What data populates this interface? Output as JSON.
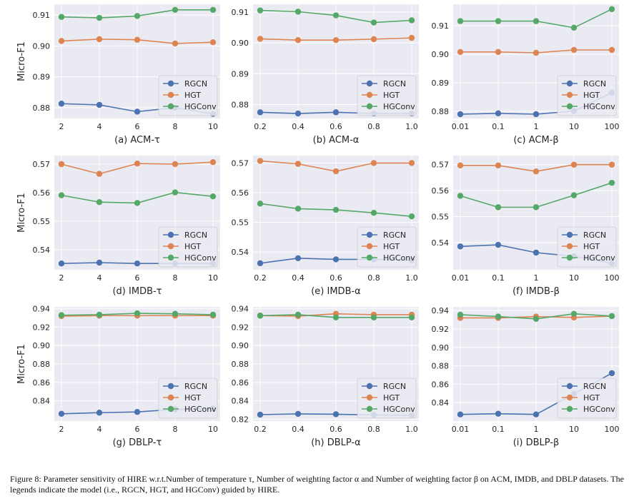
{
  "caption": "Figure 8: Parameter sensitivity of HIRE w.r.t.Number of temperature τ, Number of weighting factor α and Number of weighting factor β on ACM, IMDB, and DBLP datasets. The legends indicate the model (i.e., RGCN, HGT, and HGConv) guided by HIRE.",
  "colors": {
    "RGCN": "#4c72b0",
    "HGT": "#dd8452",
    "HGConv": "#55a868",
    "panel_bg": "#eaeaf2",
    "grid": "#ffffff"
  },
  "chart_data": [
    {
      "type": "line",
      "title": "(a) ACM-τ",
      "ylabel": "Micro-F1",
      "categories": [
        "2",
        "4",
        "6",
        "8",
        "10"
      ],
      "yticks": [
        "0.88",
        "0.89",
        "0.90",
        "0.91"
      ],
      "ylim": [
        0.8765,
        0.9135
      ],
      "series": [
        {
          "name": "RGCN",
          "values": [
            0.8813,
            0.8809,
            0.8787,
            0.88,
            0.878
          ]
        },
        {
          "name": "HGT",
          "values": [
            0.9016,
            0.9022,
            0.902,
            0.9008,
            0.9012
          ]
        },
        {
          "name": "HGConv",
          "values": [
            0.9094,
            0.9091,
            0.9097,
            0.9117,
            0.9117
          ]
        }
      ]
    },
    {
      "type": "line",
      "title": "(b) ACM-α",
      "ylabel": "",
      "categories": [
        "0.2",
        "0.4",
        "0.6",
        "0.8",
        "1.0"
      ],
      "yticks": [
        "0.88",
        "0.89",
        "0.90",
        "0.91"
      ],
      "ylim": [
        0.8755,
        0.9125
      ],
      "series": [
        {
          "name": "RGCN",
          "values": [
            0.8775,
            0.8771,
            0.8775,
            0.8771,
            0.8771
          ]
        },
        {
          "name": "HGT",
          "values": [
            0.9013,
            0.9009,
            0.9009,
            0.9012,
            0.9016
          ]
        },
        {
          "name": "HGConv",
          "values": [
            0.9105,
            0.9101,
            0.9089,
            0.9066,
            0.9073
          ]
        }
      ]
    },
    {
      "type": "line",
      "title": "(c) ACM-β",
      "ylabel": "",
      "categories": [
        "0.01",
        "0.1",
        "1",
        "10",
        "100"
      ],
      "yticks": [
        "0.88",
        "0.89",
        "0.90",
        "0.91"
      ],
      "ylim": [
        0.8775,
        0.9175
      ],
      "series": [
        {
          "name": "RGCN",
          "values": [
            0.879,
            0.8793,
            0.879,
            0.8801,
            0.8865
          ]
        },
        {
          "name": "HGT",
          "values": [
            0.9008,
            0.9008,
            0.9005,
            0.9015,
            0.9015
          ]
        },
        {
          "name": "HGConv",
          "values": [
            0.9116,
            0.9116,
            0.9116,
            0.9093,
            0.9158
          ]
        }
      ]
    },
    {
      "type": "line",
      "title": "(d) IMDB-τ",
      "ylabel": "Micro-F1",
      "categories": [
        "2",
        "4",
        "6",
        "8",
        "10"
      ],
      "yticks": [
        "0.54",
        "0.55",
        "0.56",
        "0.57"
      ],
      "ylim": [
        0.533,
        0.573
      ],
      "series": [
        {
          "name": "RGCN",
          "values": [
            0.5352,
            0.5355,
            0.5352,
            0.5352,
            0.5352
          ]
        },
        {
          "name": "HGT",
          "values": [
            0.57,
            0.5666,
            0.5702,
            0.57,
            0.5707
          ]
        },
        {
          "name": "HGConv",
          "values": [
            0.5591,
            0.5567,
            0.5564,
            0.5601,
            0.5587
          ]
        }
      ]
    },
    {
      "type": "line",
      "title": "(e) IMDB-α",
      "ylabel": "",
      "categories": [
        "0.2",
        "0.4",
        "0.6",
        "0.8",
        "1.0"
      ],
      "yticks": [
        "0.54",
        "0.55",
        "0.56",
        "0.57"
      ],
      "ylim": [
        0.534,
        0.5725
      ],
      "series": [
        {
          "name": "RGCN",
          "values": [
            0.5362,
            0.5379,
            0.5375,
            0.5375,
            0.5372
          ]
        },
        {
          "name": "HGT",
          "values": [
            0.5707,
            0.5697,
            0.5672,
            0.57,
            0.57
          ]
        },
        {
          "name": "HGConv",
          "values": [
            0.5563,
            0.5546,
            0.5542,
            0.5532,
            0.552
          ]
        }
      ]
    },
    {
      "type": "line",
      "title": "(f) IMDB-β",
      "ylabel": "",
      "categories": [
        "0.01",
        "0.1",
        "1",
        "10",
        "100"
      ],
      "yticks": [
        "0.54",
        "0.55",
        "0.56",
        "0.57"
      ],
      "ylim": [
        0.5295,
        0.5735
      ],
      "series": [
        {
          "name": "RGCN",
          "values": [
            0.5385,
            0.5391,
            0.5361,
            0.5347,
            0.532
          ]
        },
        {
          "name": "HGT",
          "values": [
            0.5697,
            0.5697,
            0.5674,
            0.57,
            0.57
          ]
        },
        {
          "name": "HGConv",
          "values": [
            0.558,
            0.5536,
            0.5536,
            0.5582,
            0.563
          ]
        }
      ]
    },
    {
      "type": "line",
      "title": "(g) DBLP-τ",
      "ylabel": "Micro-F1",
      "categories": [
        "2",
        "4",
        "6",
        "8",
        "10"
      ],
      "yticks": [
        "0.84",
        "0.86",
        "0.88",
        "0.90",
        "0.92",
        "0.94"
      ],
      "ylim": [
        0.818,
        0.942
      ],
      "series": [
        {
          "name": "RGCN",
          "values": [
            0.8259,
            0.8271,
            0.8279,
            0.8307,
            0.8315
          ]
        },
        {
          "name": "HGT",
          "values": [
            0.932,
            0.9325,
            0.9325,
            0.9325,
            0.9325
          ]
        },
        {
          "name": "HGConv",
          "values": [
            0.933,
            0.9335,
            0.935,
            0.9345,
            0.9335
          ]
        }
      ]
    },
    {
      "type": "line",
      "title": "(h) DBLP-α",
      "ylabel": "",
      "categories": [
        "0.2",
        "0.4",
        "0.6",
        "0.8",
        "1.0"
      ],
      "yticks": [
        "0.82",
        "0.84",
        "0.86",
        "0.88",
        "0.90",
        "0.92",
        "0.94"
      ],
      "ylim": [
        0.818,
        0.942
      ],
      "series": [
        {
          "name": "RGCN",
          "values": [
            0.825,
            0.8258,
            0.8254,
            0.8246,
            0.8242
          ]
        },
        {
          "name": "HGT",
          "values": [
            0.9325,
            0.932,
            0.9345,
            0.9335,
            0.9335
          ]
        },
        {
          "name": "HGConv",
          "values": [
            0.9325,
            0.9335,
            0.9305,
            0.9305,
            0.9305
          ]
        }
      ]
    },
    {
      "type": "line",
      "title": "(i) DBLP-β",
      "ylabel": "",
      "categories": [
        "0.01",
        "0.1",
        "1",
        "10",
        "100"
      ],
      "yticks": [
        "0.84",
        "0.86",
        "0.88",
        "0.90",
        "0.92",
        "0.94"
      ],
      "ylim": [
        0.82,
        0.944
      ],
      "series": [
        {
          "name": "RGCN",
          "values": [
            0.8272,
            0.828,
            0.8272,
            0.8496,
            0.872
          ]
        },
        {
          "name": "HGT",
          "values": [
            0.932,
            0.932,
            0.9335,
            0.9325,
            0.934
          ]
        },
        {
          "name": "HGConv",
          "values": [
            0.9355,
            0.9335,
            0.931,
            0.9365,
            0.934
          ]
        }
      ]
    }
  ]
}
